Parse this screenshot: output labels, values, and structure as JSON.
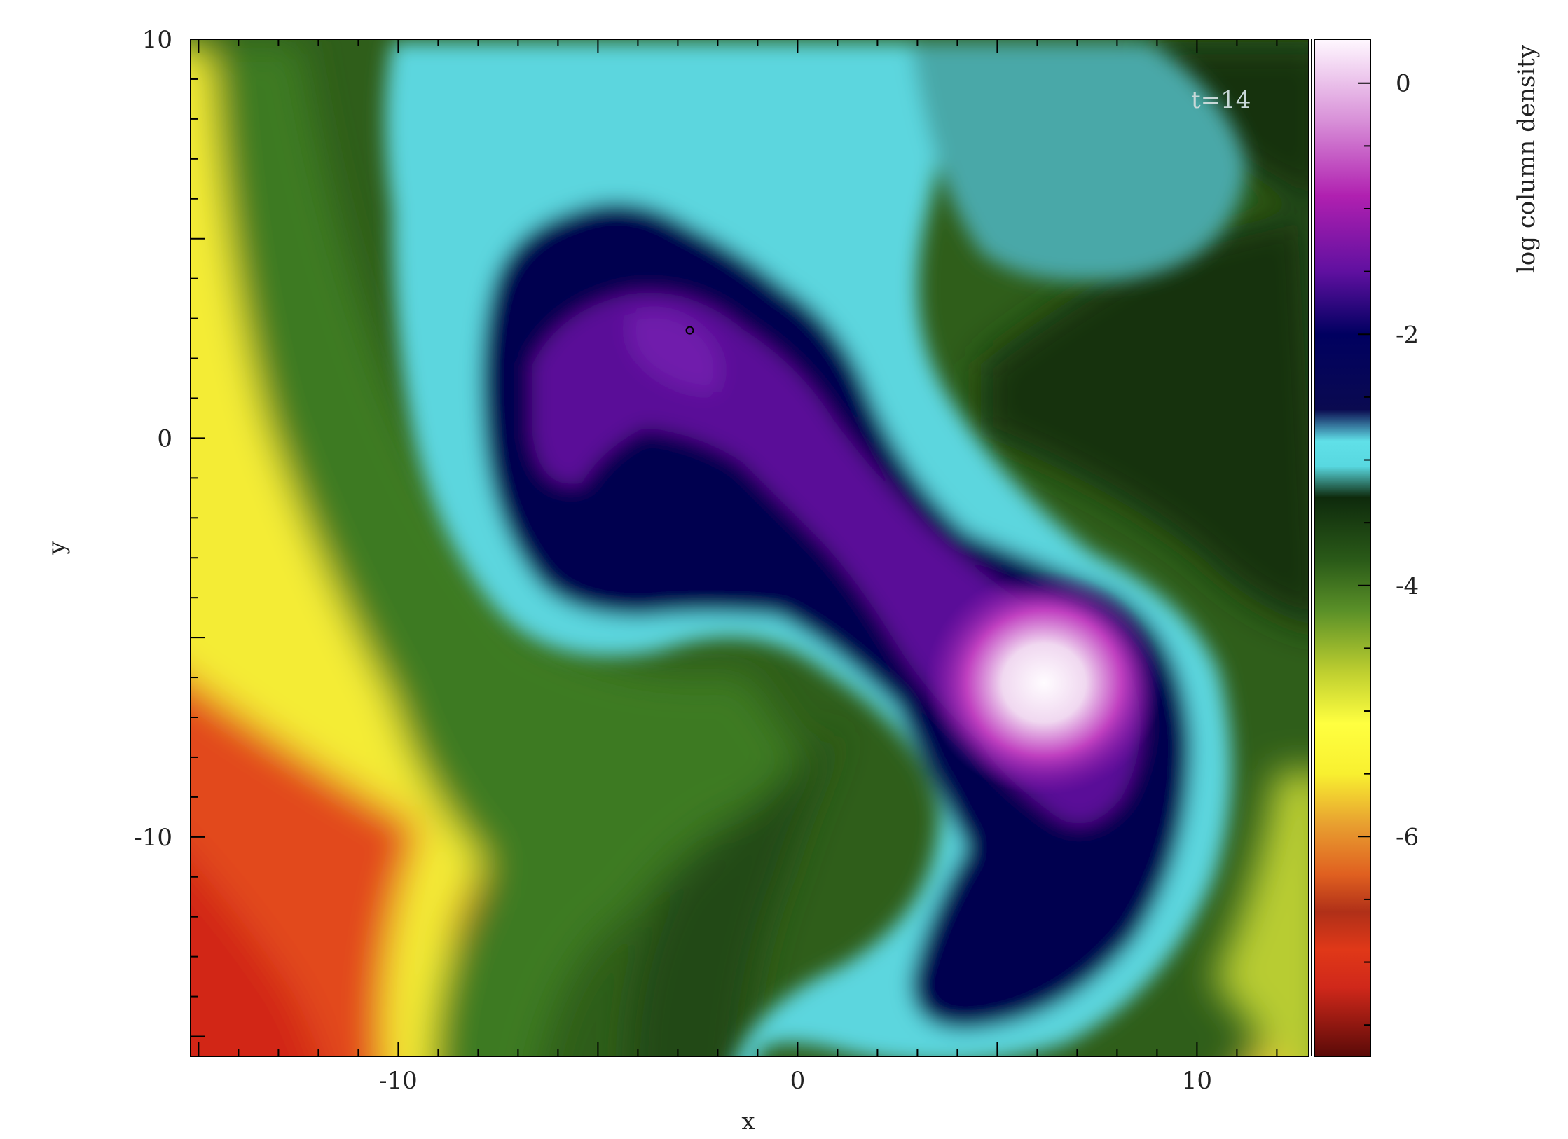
{
  "chart_data": {
    "type": "heatmap",
    "title": "",
    "xlabel": "x",
    "ylabel": "y",
    "colorbar_label": "log column density",
    "annotation": "t=14",
    "xlim": [
      -15.2,
      12.8
    ],
    "ylim": [
      -15.5,
      10.0
    ],
    "x_ticks": [
      -10,
      0,
      10
    ],
    "y_ticks": [
      -10,
      0,
      10
    ],
    "x_tick_labels": [
      "-10",
      "0",
      "10"
    ],
    "y_tick_labels": [
      "-10",
      "0",
      "10"
    ],
    "colorbar_range": [
      -7.75,
      0.35
    ],
    "colorbar_ticks": [
      0,
      -2,
      -4,
      -6
    ],
    "colorbar_tick_labels": [
      "0",
      "-2",
      "-4",
      "-6"
    ],
    "colormap": [
      {
        "value": -7.75,
        "color": "#5a0a08"
      },
      {
        "value": -7.2,
        "color": "#d0281a"
      },
      {
        "value": -6.9,
        "color": "#e03818"
      },
      {
        "value": -6.6,
        "color": "#b03018"
      },
      {
        "value": -6.3,
        "color": "#e06020"
      },
      {
        "value": -5.9,
        "color": "#e8a030"
      },
      {
        "value": -5.5,
        "color": "#f8f030"
      },
      {
        "value": -5.1,
        "color": "#ffff40"
      },
      {
        "value": -4.7,
        "color": "#c0d030"
      },
      {
        "value": -4.2,
        "color": "#5a9028"
      },
      {
        "value": -3.8,
        "color": "#2a5a18"
      },
      {
        "value": -3.3,
        "color": "#0e2a0c"
      },
      {
        "value": -3.05,
        "color": "#58d8e0"
      },
      {
        "value": -2.85,
        "color": "#60e0e8"
      },
      {
        "value": -2.6,
        "color": "#0a0a50"
      },
      {
        "value": -2.0,
        "color": "#000060"
      },
      {
        "value": -1.5,
        "color": "#6010a0"
      },
      {
        "value": -0.9,
        "color": "#b020b0"
      },
      {
        "value": -0.3,
        "color": "#d890d8"
      },
      {
        "value": 0.35,
        "color": "#fff8ff"
      }
    ],
    "features": [
      {
        "name": "dense core",
        "x": 6.3,
        "y": -5.8,
        "peak": 0.2
      },
      {
        "name": "sink particle",
        "x": -2.7,
        "y": 2.7
      }
    ]
  }
}
